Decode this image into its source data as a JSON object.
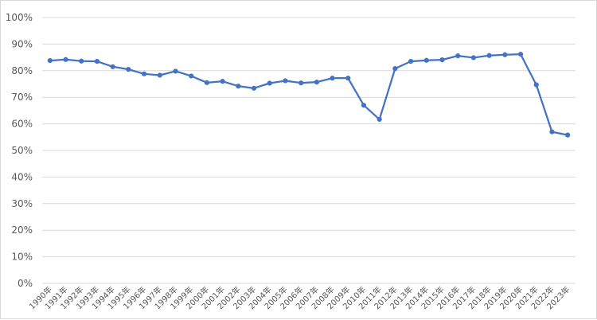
{
  "chart_data": {
    "type": "line",
    "title": "",
    "xlabel": "",
    "ylabel": "",
    "grid": "horizontal",
    "legend": "none",
    "ylim": [
      0,
      100
    ],
    "y_ticks": [
      "0%",
      "10%",
      "20%",
      "30%",
      "40%",
      "50%",
      "60%",
      "70%",
      "80%",
      "90%",
      "100%"
    ],
    "categories": [
      "1990年",
      "1991年",
      "1992年",
      "1993年",
      "1994年",
      "1995年",
      "1996年",
      "1997年",
      "1998年",
      "1999年",
      "2000年",
      "2001年",
      "2002年",
      "2003年",
      "2004年",
      "2005年",
      "2006年",
      "2007年",
      "2008年",
      "2009年",
      "2010年",
      "2011年",
      "2012年",
      "2013年",
      "2014年",
      "2015年",
      "2016年",
      "2017年",
      "2018年",
      "2019年",
      "2020年",
      "2021年",
      "2022年",
      "2023年"
    ],
    "series": [
      {
        "color": "#4472c4",
        "values": [
          83.8,
          84.2,
          83.6,
          83.5,
          81.5,
          80.5,
          78.8,
          78.3,
          79.8,
          78.0,
          75.5,
          76.0,
          74.2,
          73.4,
          75.3,
          76.2,
          75.4,
          75.7,
          77.2,
          77.2,
          67.0,
          61.7,
          80.8,
          83.5,
          83.9,
          84.1,
          85.6,
          84.9,
          85.7,
          86.0,
          86.2,
          74.7,
          57.0,
          55.8
        ]
      }
    ]
  }
}
